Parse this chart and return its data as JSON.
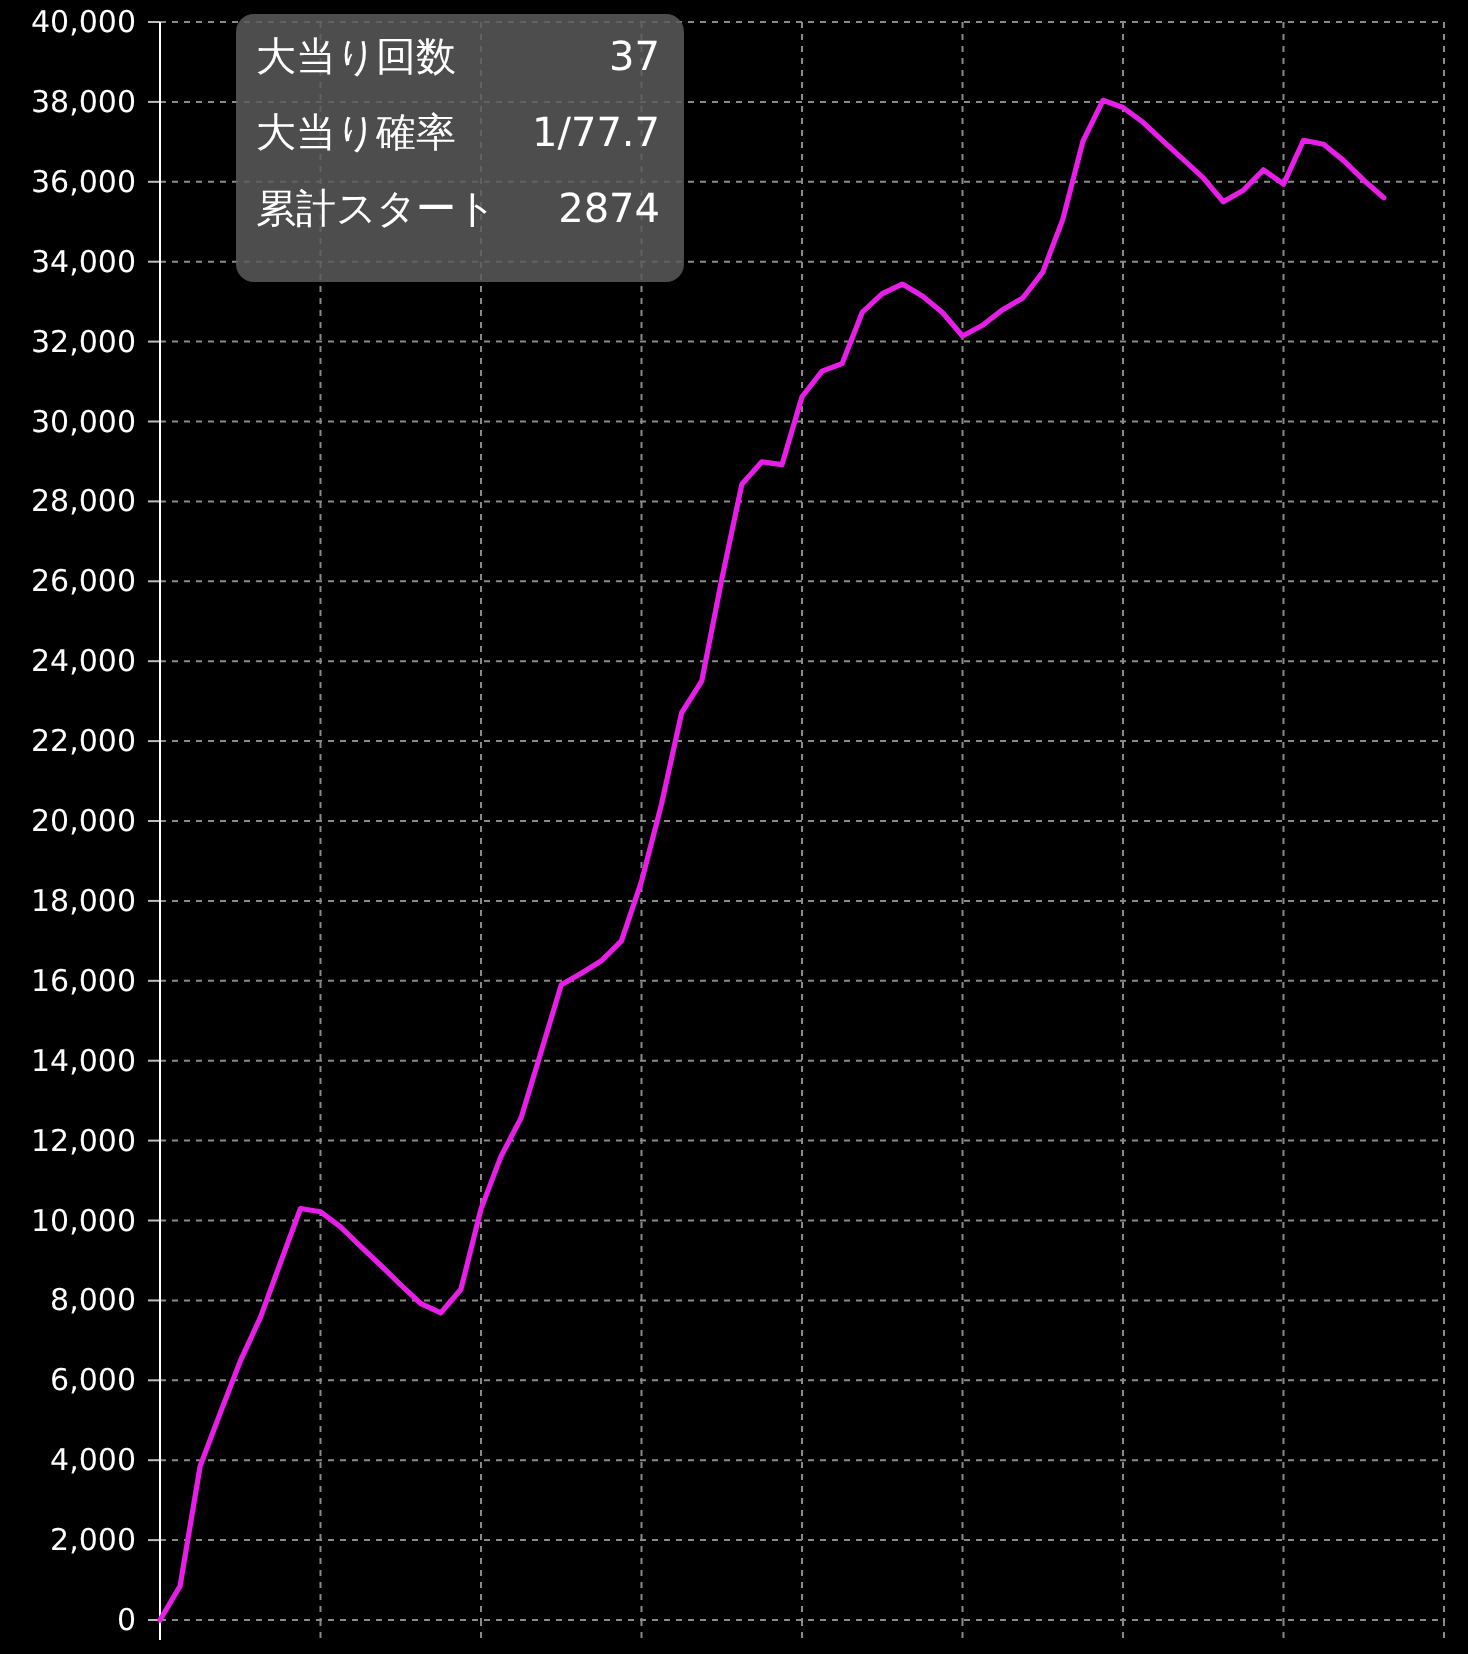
{
  "chart_data": {
    "type": "line",
    "categories": [
      null,
      null,
      null,
      null,
      null,
      null,
      null,
      null,
      null,
      null,
      null,
      null,
      null,
      null,
      null,
      null,
      null,
      null,
      null,
      null,
      null,
      null,
      null,
      null,
      null,
      null,
      null,
      null,
      null,
      null,
      null,
      null,
      null,
      null,
      null,
      null,
      null,
      null,
      null,
      null,
      null,
      null,
      null,
      null,
      null,
      null,
      null,
      null,
      null,
      null,
      null,
      null,
      null,
      null,
      null,
      null,
      null,
      null,
      null,
      null,
      null,
      null,
      null,
      null,
      null
    ],
    "series": [
      {
        "color": "#e81ee8",
        "values": [
          0,
          850,
          3850,
          5180,
          6480,
          7570,
          8940,
          10300,
          10220,
          9840,
          9350,
          8880,
          8390,
          7920,
          7690,
          8280,
          10290,
          11610,
          12570,
          14230,
          15900,
          16190,
          16500,
          17000,
          18490,
          20430,
          22710,
          23500,
          26050,
          28430,
          28990,
          28920,
          30620,
          31260,
          31450,
          32730,
          33200,
          33440,
          33140,
          32730,
          32140,
          32410,
          32800,
          33090,
          33740,
          35060,
          37010,
          38040,
          37860,
          37490,
          37020,
          36560,
          36100,
          35500,
          35790,
          36300,
          35940,
          37040,
          36940,
          36530,
          36040,
          35600,
          null,
          null,
          null
        ]
      }
    ],
    "ylim": [
      0,
      40000
    ],
    "yticks": [
      {
        "value": 0,
        "label": "0"
      },
      {
        "value": 2000,
        "label": "2,000"
      },
      {
        "value": 4000,
        "label": "4,000"
      },
      {
        "value": 6000,
        "label": "6,000"
      },
      {
        "value": 8000,
        "label": "8,000"
      },
      {
        "value": 10000,
        "label": "10,000"
      },
      {
        "value": 12000,
        "label": "12,000"
      },
      {
        "value": 14000,
        "label": "14,000"
      },
      {
        "value": 16000,
        "label": "16,000"
      },
      {
        "value": 18000,
        "label": "18,000"
      },
      {
        "value": 20000,
        "label": "20,000"
      },
      {
        "value": 22000,
        "label": "22,000"
      },
      {
        "value": 24000,
        "label": "24,000"
      },
      {
        "value": 26000,
        "label": "26,000"
      },
      {
        "value": 28000,
        "label": "28,000"
      },
      {
        "value": 30000,
        "label": "30,000"
      },
      {
        "value": 32000,
        "label": "32,000"
      },
      {
        "value": 34000,
        "label": "34,000"
      },
      {
        "value": 36000,
        "label": "36,000"
      },
      {
        "value": 38000,
        "label": "38,000"
      },
      {
        "value": 40000,
        "label": "40,000"
      }
    ],
    "grid": true,
    "line_style": "solid",
    "annotations": [
      "大当り回数",
      "37",
      "大当り確率",
      "1/77.7",
      "累計スタート",
      "2874"
    ]
  }
}
